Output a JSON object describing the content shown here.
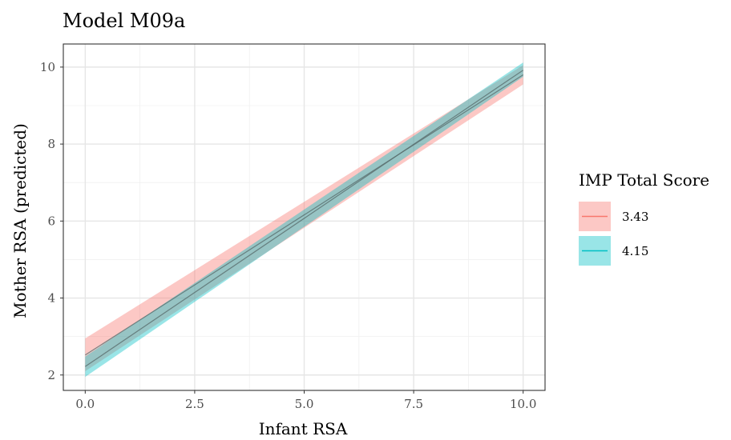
{
  "chart_data": {
    "type": "line",
    "title": "Model M09a",
    "xlabel": "Infant RSA",
    "ylabel": "Mother RSA (predicted)",
    "xlim": [
      -0.5,
      10.5
    ],
    "ylim": [
      1.6,
      10.6
    ],
    "x_ticks": [
      0,
      2.5,
      5,
      7.5,
      10
    ],
    "x_tick_labels": [
      "0.0",
      "2.5",
      "5.0",
      "7.5",
      "10.0"
    ],
    "y_ticks": [
      2,
      4,
      6,
      8,
      10
    ],
    "y_tick_labels": [
      "2",
      "4",
      "6",
      "8",
      "10"
    ],
    "grid": true,
    "legend": {
      "title": "IMP Total Score",
      "placement": "right"
    },
    "series": [
      {
        "name": "3.43",
        "color": "#F8766D",
        "fill_color": "#F8766D",
        "x": [
          0,
          10
        ],
        "y": [
          2.52,
          9.8
        ],
        "lower": [
          2.1,
          9.55
        ],
        "upper": [
          2.95,
          10.05
        ]
      },
      {
        "name": "4.15",
        "color": "#00BFC4",
        "fill_color": "#00BFC4",
        "x": [
          0,
          10
        ],
        "y": [
          2.22,
          9.92
        ],
        "lower": [
          1.95,
          9.75
        ],
        "upper": [
          2.48,
          10.12
        ]
      }
    ]
  }
}
